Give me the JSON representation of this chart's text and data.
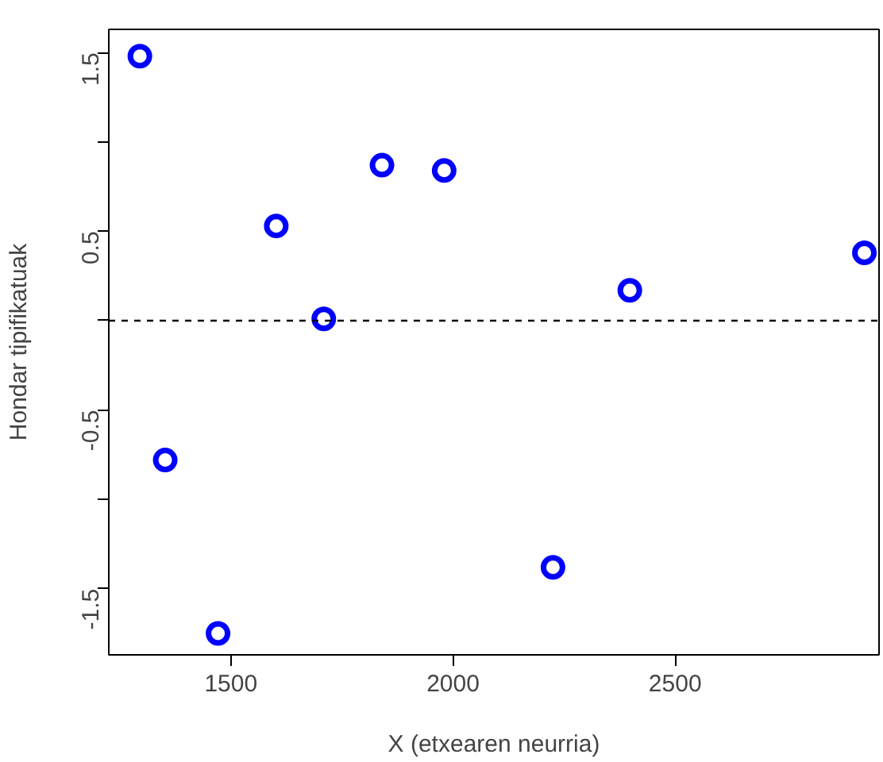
{
  "chart_data": {
    "type": "scatter",
    "xlabel": "X (etxearen neurria)",
    "ylabel": "Hondar tipifikatuak",
    "x": [
      1295,
      1352,
      1471,
      1602,
      1709,
      1840,
      1980,
      2225,
      2398,
      2926
    ],
    "values": [
      1.48,
      -0.78,
      -1.75,
      0.53,
      0.01,
      0.87,
      0.84,
      -1.38,
      0.17,
      0.38
    ],
    "color": "#0000ff",
    "marker": "circle",
    "xlim": [
      1225,
      2959
    ],
    "ylim": [
      -1.87,
      1.63
    ],
    "xticks": [
      1500,
      2000,
      2500
    ],
    "yticks": [
      1.5,
      {
        "value": 1,
        "label": null
      },
      0.5,
      {
        "value": 0,
        "label": null
      },
      -0.5,
      {
        "value": -1,
        "label": null
      },
      -1.5
    ],
    "ref_lines": [
      {
        "axis": "y",
        "value": 0,
        "line_style": "dashed",
        "color": "#000000"
      }
    ],
    "grid": false
  }
}
